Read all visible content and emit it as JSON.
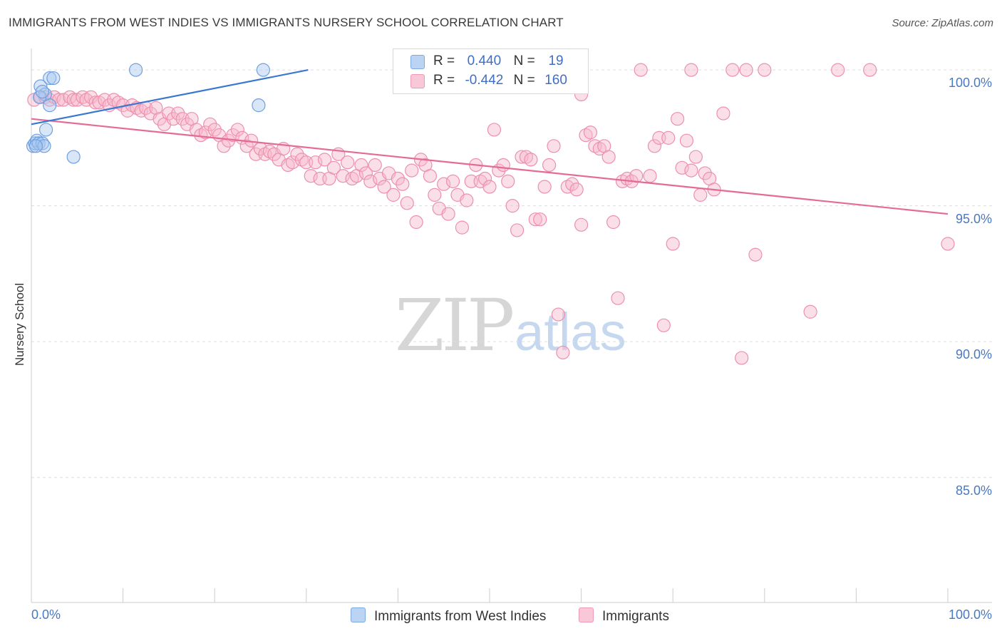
{
  "title": "IMMIGRANTS FROM WEST INDIES VS IMMIGRANTS NURSERY SCHOOL CORRELATION CHART",
  "source": "Source: ZipAtlas.com",
  "watermark": {
    "zip": "ZIP",
    "atlas": "atlas"
  },
  "legend": {
    "rows": [
      {
        "r_label": "R =",
        "r_value": "0.440",
        "n_label": "N =",
        "n_value": "19"
      },
      {
        "r_label": "R =",
        "r_value": "-0.442",
        "n_label": "N =",
        "n_value": "160"
      }
    ]
  },
  "colors": {
    "blue_fill": "#a9c8f0",
    "blue_stroke": "#6f9fdf",
    "blue_line": "#3a78d0",
    "pink_fill": "#f7b9cd",
    "pink_stroke": "#ec90ad",
    "pink_line": "#e46b96",
    "tick_text": "#4a78c2",
    "grid": "#dddddd"
  },
  "chart_data": {
    "type": "scatter",
    "title": "IMMIGRANTS FROM WEST INDIES VS IMMIGRANTS NURSERY SCHOOL CORRELATION CHART",
    "xlabel": "",
    "ylabel": "Nursery School",
    "xlim": [
      0,
      100
    ],
    "ylim": [
      80.4,
      101.0
    ],
    "x_tick_labels": [
      "0.0%",
      "100.0%"
    ],
    "y_ticks": [
      85,
      90,
      95,
      100
    ],
    "y_tick_labels": [
      "85.0%",
      "90.0%",
      "95.0%",
      "100.0%"
    ],
    "grid": true,
    "legend_position": "bottom",
    "series": [
      {
        "name": "Immigrants from West Indies",
        "color": "#a9c8f0",
        "points": [
          [
            0.2,
            97.2
          ],
          [
            0.4,
            97.3
          ],
          [
            0.6,
            97.4
          ],
          [
            0.8,
            97.3
          ],
          [
            1.0,
            99.4
          ],
          [
            1.2,
            97.3
          ],
          [
            1.5,
            99.1
          ],
          [
            1.6,
            97.8
          ],
          [
            1.4,
            97.2
          ],
          [
            2.0,
            98.7
          ],
          [
            2.0,
            99.7
          ],
          [
            2.4,
            99.7
          ],
          [
            4.6,
            96.8
          ],
          [
            11.4,
            100.0
          ],
          [
            25.3,
            100.0
          ],
          [
            24.8,
            98.7
          ],
          [
            0.9,
            99.0
          ],
          [
            1.2,
            99.2
          ],
          [
            0.5,
            97.2
          ]
        ],
        "trend": {
          "x": [
            0,
            30.2
          ],
          "y": [
            98.0,
            100.0
          ]
        }
      },
      {
        "name": "Immigrants",
        "color": "#f7b9cd",
        "points": [
          [
            0.3,
            98.9
          ],
          [
            1.0,
            99.0
          ],
          [
            1.5,
            99.0
          ],
          [
            2.0,
            98.9
          ],
          [
            2.5,
            99.0
          ],
          [
            3.0,
            98.9
          ],
          [
            3.5,
            98.9
          ],
          [
            4.2,
            99.0
          ],
          [
            4.6,
            98.9
          ],
          [
            5.0,
            98.9
          ],
          [
            5.6,
            99.0
          ],
          [
            6.0,
            98.9
          ],
          [
            6.5,
            99.0
          ],
          [
            7.0,
            98.8
          ],
          [
            7.4,
            98.8
          ],
          [
            8.0,
            98.9
          ],
          [
            8.5,
            98.7
          ],
          [
            9.0,
            98.9
          ],
          [
            9.5,
            98.8
          ],
          [
            10.0,
            98.7
          ],
          [
            10.5,
            98.5
          ],
          [
            11.0,
            98.7
          ],
          [
            11.5,
            98.6
          ],
          [
            12.0,
            98.5
          ],
          [
            12.5,
            98.6
          ],
          [
            13.0,
            98.4
          ],
          [
            13.6,
            98.6
          ],
          [
            14.0,
            98.2
          ],
          [
            14.5,
            98.0
          ],
          [
            15.0,
            98.4
          ],
          [
            15.5,
            98.2
          ],
          [
            16.0,
            98.4
          ],
          [
            16.5,
            98.2
          ],
          [
            17.0,
            98.0
          ],
          [
            17.5,
            98.2
          ],
          [
            18.0,
            97.8
          ],
          [
            18.5,
            97.6
          ],
          [
            19.0,
            97.7
          ],
          [
            19.5,
            98.0
          ],
          [
            20.0,
            97.8
          ],
          [
            20.5,
            97.6
          ],
          [
            21.0,
            97.2
          ],
          [
            21.5,
            97.4
          ],
          [
            22.0,
            97.6
          ],
          [
            22.5,
            97.8
          ],
          [
            23.0,
            97.5
          ],
          [
            23.5,
            97.2
          ],
          [
            24.0,
            97.4
          ],
          [
            24.5,
            96.9
          ],
          [
            25.0,
            97.1
          ],
          [
            25.5,
            96.9
          ],
          [
            26.0,
            97.0
          ],
          [
            26.5,
            96.9
          ],
          [
            27.0,
            96.7
          ],
          [
            27.5,
            97.1
          ],
          [
            28.0,
            96.5
          ],
          [
            28.5,
            96.6
          ],
          [
            29.0,
            96.9
          ],
          [
            29.5,
            96.7
          ],
          [
            30.0,
            96.6
          ],
          [
            30.5,
            96.1
          ],
          [
            31.0,
            96.6
          ],
          [
            31.5,
            96.0
          ],
          [
            32.0,
            96.7
          ],
          [
            32.5,
            96.0
          ],
          [
            33.0,
            96.4
          ],
          [
            33.5,
            96.9
          ],
          [
            34.0,
            96.1
          ],
          [
            34.5,
            96.6
          ],
          [
            35.0,
            96.0
          ],
          [
            35.5,
            96.1
          ],
          [
            36.0,
            96.5
          ],
          [
            36.5,
            96.2
          ],
          [
            37.0,
            95.9
          ],
          [
            37.5,
            96.5
          ],
          [
            38.0,
            96.0
          ],
          [
            38.5,
            95.7
          ],
          [
            39.0,
            96.2
          ],
          [
            39.5,
            95.4
          ],
          [
            40.0,
            96.0
          ],
          [
            40.5,
            95.8
          ],
          [
            41.0,
            95.1
          ],
          [
            41.5,
            96.3
          ],
          [
            42.0,
            94.4
          ],
          [
            42.5,
            96.7
          ],
          [
            43.0,
            96.5
          ],
          [
            43.5,
            96.1
          ],
          [
            44.0,
            95.4
          ],
          [
            44.5,
            94.9
          ],
          [
            45.0,
            95.8
          ],
          [
            45.5,
            94.7
          ],
          [
            46.0,
            95.9
          ],
          [
            46.5,
            95.4
          ],
          [
            47.0,
            94.2
          ],
          [
            47.5,
            95.2
          ],
          [
            48.0,
            95.9
          ],
          [
            48.5,
            96.5
          ],
          [
            49.0,
            95.9
          ],
          [
            49.5,
            96.0
          ],
          [
            50.0,
            95.7
          ],
          [
            50.5,
            97.8
          ],
          [
            51.0,
            96.3
          ],
          [
            51.5,
            96.5
          ],
          [
            52.0,
            95.9
          ],
          [
            52.5,
            95.0
          ],
          [
            53.0,
            94.1
          ],
          [
            53.5,
            96.8
          ],
          [
            54.0,
            96.8
          ],
          [
            54.5,
            96.7
          ],
          [
            55.0,
            94.5
          ],
          [
            55.5,
            94.5
          ],
          [
            56.0,
            95.7
          ],
          [
            56.5,
            96.5
          ],
          [
            57.0,
            97.2
          ],
          [
            57.5,
            91.0
          ],
          [
            58.0,
            89.6
          ],
          [
            58.5,
            95.7
          ],
          [
            59.0,
            95.8
          ],
          [
            59.5,
            95.6
          ],
          [
            60.0,
            94.3
          ],
          [
            60.5,
            97.6
          ],
          [
            61.0,
            97.7
          ],
          [
            61.5,
            97.2
          ],
          [
            62.0,
            97.1
          ],
          [
            62.5,
            97.2
          ],
          [
            63.0,
            96.8
          ],
          [
            63.5,
            94.4
          ],
          [
            64.0,
            91.6
          ],
          [
            64.5,
            95.9
          ],
          [
            65.0,
            96.0
          ],
          [
            65.5,
            95.9
          ],
          [
            66.0,
            96.1
          ],
          [
            66.5,
            100.0
          ],
          [
            67.5,
            96.1
          ],
          [
            68.0,
            97.2
          ],
          [
            68.5,
            97.5
          ],
          [
            69.0,
            90.6
          ],
          [
            69.5,
            97.5
          ],
          [
            70.0,
            93.6
          ],
          [
            70.5,
            98.2
          ],
          [
            71.0,
            96.4
          ],
          [
            71.5,
            97.4
          ],
          [
            72.0,
            96.3
          ],
          [
            72.5,
            96.8
          ],
          [
            73.0,
            95.4
          ],
          [
            73.5,
            96.2
          ],
          [
            74.0,
            96.0
          ],
          [
            74.5,
            95.6
          ],
          [
            75.5,
            98.4
          ],
          [
            76.5,
            100.0
          ],
          [
            77.5,
            89.4
          ],
          [
            79.0,
            93.2
          ],
          [
            80.0,
            100.0
          ],
          [
            85.0,
            91.1
          ],
          [
            88.0,
            100.0
          ],
          [
            91.5,
            100.0
          ],
          [
            100.0,
            93.6
          ],
          [
            72.0,
            100.0
          ],
          [
            78.0,
            100.0
          ],
          [
            60.0,
            99.1
          ]
        ],
        "trend": {
          "x": [
            0,
            100
          ],
          "y": [
            98.2,
            94.7
          ]
        }
      }
    ]
  }
}
